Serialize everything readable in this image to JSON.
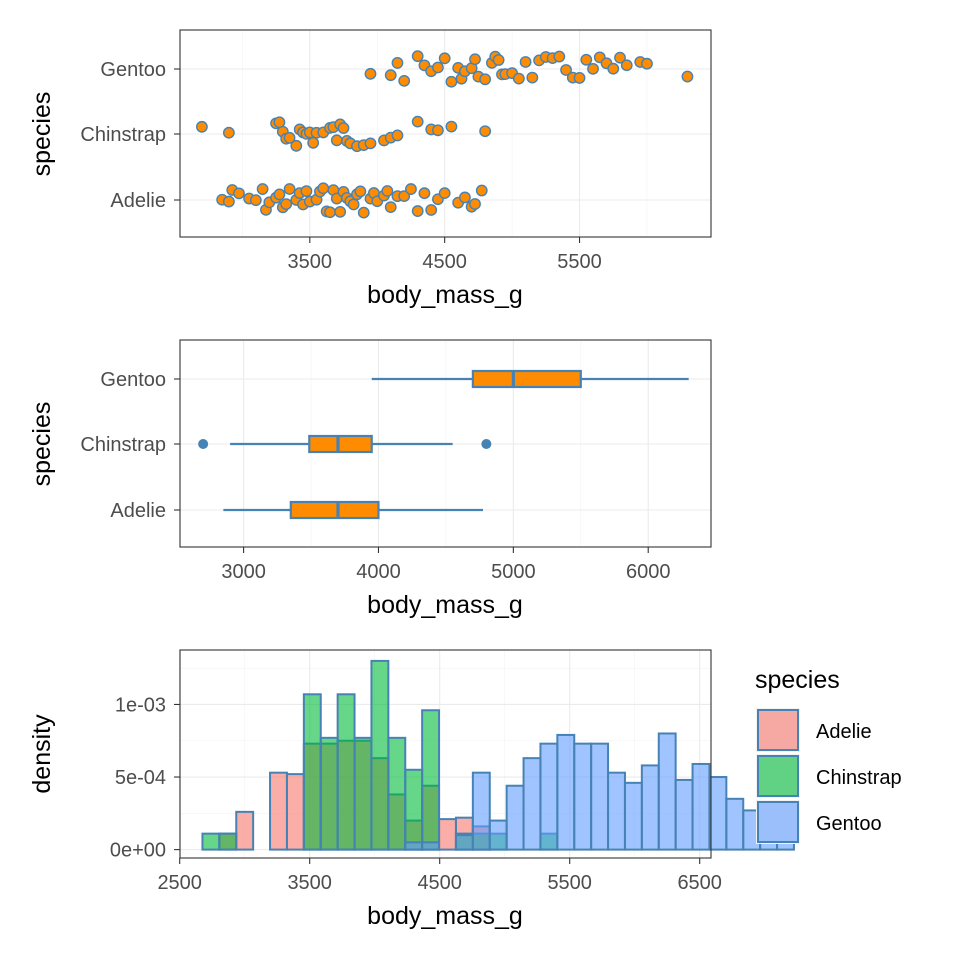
{
  "chart_data": [
    {
      "type": "scatter",
      "subtype": "jitter",
      "xlabel": "body_mass_g",
      "ylabel": "species",
      "categories": [
        "Adelie",
        "Chinstrap",
        "Gentoo"
      ],
      "xlim": [
        3000,
        6000
      ],
      "xticks": [
        3500,
        4500,
        5500
      ],
      "xtick_labels": [
        "3500",
        "4500",
        "5500"
      ],
      "colors": {
        "point_fill": "#ff8c00",
        "point_stroke": "#4682b4",
        "grid": "#ebebeb",
        "panel_border": "#333333"
      },
      "grid": true,
      "series": [
        {
          "category": "Adelie",
          "x": [
            2850,
            2900,
            2925,
            2975,
            3050,
            3100,
            3150,
            3175,
            3200,
            3250,
            3275,
            3300,
            3325,
            3350,
            3400,
            3425,
            3450,
            3475,
            3500,
            3550,
            3575,
            3600,
            3625,
            3650,
            3675,
            3700,
            3725,
            3750,
            3775,
            3800,
            3825,
            3850,
            3875,
            3900,
            3950,
            3975,
            4000,
            4050,
            4075,
            4100,
            4150,
            4200,
            4250,
            4300,
            4350,
            4400,
            4450,
            4500,
            4600,
            4650,
            4700,
            4725,
            4775
          ]
        },
        {
          "category": "Chinstrap",
          "x": [
            2700,
            2900,
            3250,
            3275,
            3300,
            3325,
            3350,
            3400,
            3425,
            3450,
            3475,
            3500,
            3525,
            3550,
            3600,
            3650,
            3675,
            3700,
            3725,
            3750,
            3775,
            3800,
            3850,
            3900,
            3950,
            4050,
            4100,
            4150,
            4300,
            4400,
            4450,
            4550,
            4800
          ]
        },
        {
          "category": "Gentoo",
          "x": [
            3950,
            4100,
            4150,
            4200,
            4300,
            4350,
            4400,
            4450,
            4500,
            4550,
            4600,
            4625,
            4650,
            4700,
            4725,
            4750,
            4800,
            4850,
            4875,
            4900,
            4925,
            4950,
            5000,
            5050,
            5100,
            5150,
            5200,
            5250,
            5300,
            5350,
            5400,
            5450,
            5500,
            5550,
            5600,
            5650,
            5700,
            5750,
            5800,
            5850,
            5950,
            6000,
            6300
          ]
        }
      ]
    },
    {
      "type": "box",
      "orientation": "horizontal",
      "xlabel": "body_mass_g",
      "ylabel": "species",
      "categories": [
        "Adelie",
        "Chinstrap",
        "Gentoo"
      ],
      "xlim": [
        2700,
        6300
      ],
      "xticks": [
        3000,
        4000,
        5000,
        6000
      ],
      "xtick_labels": [
        "3000",
        "4000",
        "5000",
        "6000"
      ],
      "colors": {
        "box_fill": "#ff8c00",
        "box_stroke": "#4682b4"
      },
      "grid": true,
      "boxes": [
        {
          "category": "Adelie",
          "whisker_low": 2850,
          "q1": 3350,
          "median": 3700,
          "q3": 4000,
          "whisker_high": 4775,
          "outliers": []
        },
        {
          "category": "Chinstrap",
          "whisker_low": 2900,
          "q1": 3487,
          "median": 3700,
          "q3": 3950,
          "whisker_high": 4550,
          "outliers": [
            2700,
            4800
          ]
        },
        {
          "category": "Gentoo",
          "whisker_low": 3950,
          "q1": 4700,
          "median": 5000,
          "q3": 5500,
          "whisker_high": 6300,
          "outliers": []
        }
      ]
    },
    {
      "type": "bar",
      "subtype": "histogram",
      "xlabel": "body_mass_g",
      "ylabel": "density",
      "xlim": [
        2500,
        6500
      ],
      "ylim": [
        0,
        0.00133
      ],
      "xticks": [
        2500,
        3500,
        4500,
        5500,
        6500
      ],
      "xtick_labels": [
        "2500",
        "3500",
        "4500",
        "5500",
        "6500"
      ],
      "yticks": [
        0,
        0.0005,
        0.001
      ],
      "ytick_labels": [
        "0e+00",
        "5e-04",
        "1e-03"
      ],
      "bin_start": 2675,
      "bin_width": 130,
      "grid": true,
      "legend": {
        "title": "species",
        "position": "right"
      },
      "series": [
        {
          "name": "Adelie",
          "color": "#f8766d",
          "values": [
            0,
            0.00011,
            0.00026,
            0,
            0.00053,
            0.00052,
            0.00073,
            0.00073,
            0.00075,
            0.00075,
            0.00063,
            0.00038,
            0.0002,
            0.00044,
            0.00021,
            0.00022,
            0.00016,
            0,
            0,
            0,
            0,
            0,
            0,
            0,
            0,
            0,
            0,
            0,
            0,
            0,
            0,
            0,
            0,
            0,
            0
          ]
        },
        {
          "name": "Chinstrap",
          "color": "#00ba38",
          "values": [
            0.00011,
            0.00011,
            0,
            0,
            0,
            0,
            0.00107,
            0.00077,
            0.00107,
            0.00077,
            0.0013,
            0.00077,
            0.00055,
            0.00096,
            0,
            0.00011,
            0.00011,
            0.00011,
            0,
            0,
            0.00011,
            0,
            0,
            0,
            0,
            0,
            0,
            0,
            0,
            0,
            0,
            0,
            0,
            0,
            0
          ]
        },
        {
          "name": "Gentoo",
          "color": "#619cff",
          "values": [
            0,
            0,
            0,
            0,
            0,
            0,
            0,
            0,
            0,
            0,
            0,
            0,
            5e-05,
            5e-05,
            0,
            0.0001,
            0.00053,
            0.0002,
            0.00044,
            0.00063,
            0.00073,
            0.00079,
            0.00073,
            0.00073,
            0.00053,
            0.00046,
            0.00058,
            0.0008,
            0.00048,
            0.00059,
            0.0005,
            0.00035,
            0.00027,
            5e-05,
            7e-05
          ]
        }
      ]
    }
  ]
}
